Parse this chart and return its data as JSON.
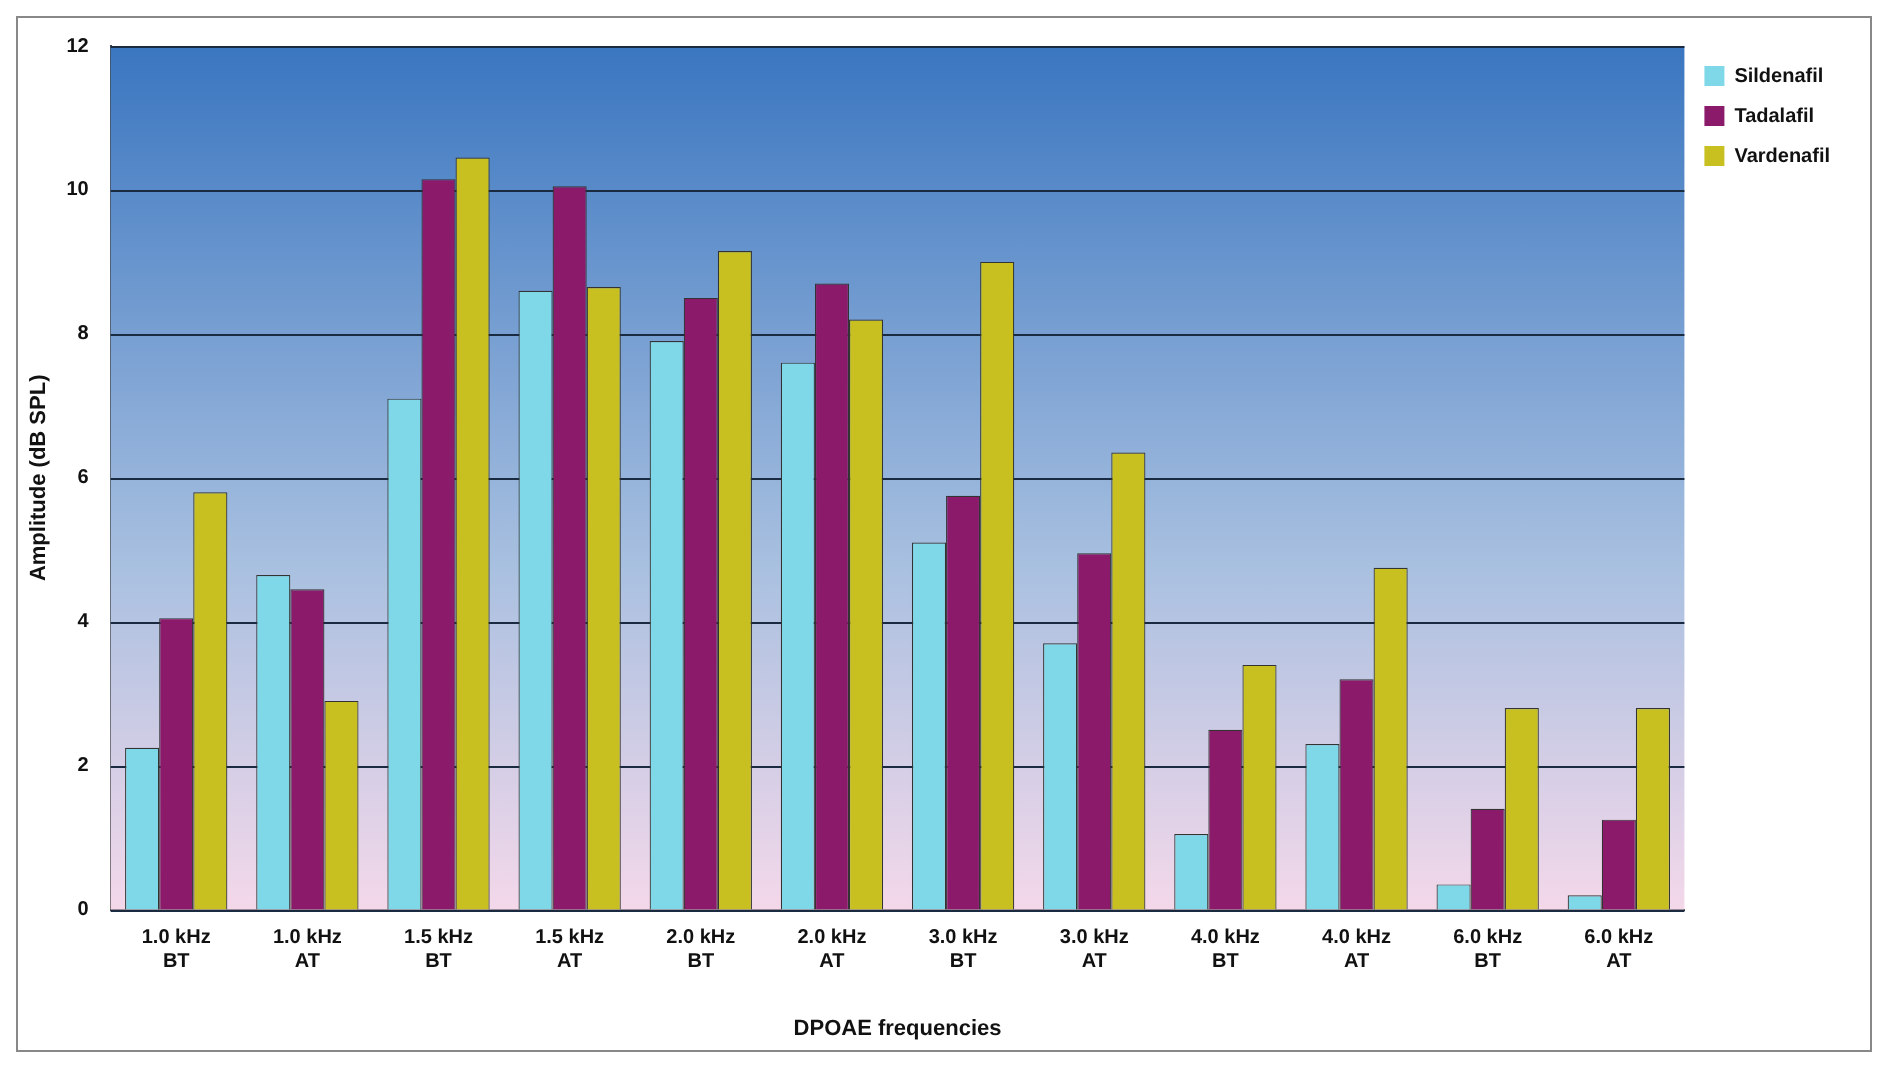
{
  "chart_data": {
    "type": "bar",
    "xlabel": "DPOAE frequencies",
    "ylabel": "Amplitude (dB SPL)",
    "categories": [
      "1.0 kHz BT",
      "1.0 kHz AT",
      "1.5 kHz BT",
      "1.5 kHz AT",
      "2.0 kHz BT",
      "2.0 kHz AT",
      "3.0 kHz BT",
      "3.0 kHz AT",
      "4.0 kHz BT",
      "4.0 kHz AT",
      "6.0 kHz BT",
      "6.0 kHz AT"
    ],
    "series": [
      {
        "name": "Sildenafil",
        "color": "#7fd8e8",
        "values": [
          2.25,
          4.65,
          7.1,
          8.6,
          7.9,
          7.6,
          5.1,
          3.7,
          1.05,
          2.3,
          0.35,
          0.2
        ]
      },
      {
        "name": "Tadalafil",
        "color": "#8b1a6b",
        "values": [
          4.05,
          4.45,
          10.15,
          10.05,
          8.5,
          8.7,
          5.75,
          4.95,
          2.5,
          3.2,
          1.4,
          1.25
        ]
      },
      {
        "name": "Vardenafil",
        "color": "#c8c020",
        "values": [
          5.8,
          2.9,
          10.45,
          8.65,
          9.15,
          8.2,
          9.0,
          6.35,
          3.4,
          4.75,
          2.8,
          2.8
        ]
      }
    ],
    "ylim": [
      0,
      12
    ],
    "yticks": [
      0,
      2,
      4,
      6,
      8,
      10,
      12
    ],
    "grid": "y",
    "legend": "top right"
  }
}
